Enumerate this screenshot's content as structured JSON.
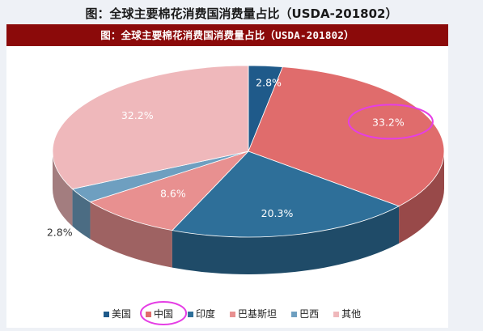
{
  "page": {
    "outer_title": "图：全球主要棉花消费国消费量占比（USDA-201802）",
    "inner_title": "图：全球主要棉花消费国消费量占比（USDA-201802）"
  },
  "chart_data": {
    "type": "pie",
    "style": "3d-pie",
    "title": "图：全球主要棉花消费国消费量占比（USDA-201802）",
    "legend_position": "bottom",
    "slices": [
      {
        "label": "美国",
        "value": 2.8,
        "display": "2.8%",
        "color": "#1f5a8a"
      },
      {
        "label": "中国",
        "value": 33.2,
        "display": "33.2%",
        "color": "#e06c6c"
      },
      {
        "label": "印度",
        "value": 20.3,
        "display": "20.3%",
        "color": "#2e6f99"
      },
      {
        "label": "巴基斯坦",
        "value": 8.6,
        "display": "8.6%",
        "color": "#e89090"
      },
      {
        "label": "巴西",
        "value": 2.8,
        "display": "2.8%",
        "color": "#6e9fc0"
      },
      {
        "label": "其他",
        "value": 32.2,
        "display": "32.2%",
        "color": "#efb8bb"
      }
    ],
    "highlighted": [
      "中国"
    ]
  },
  "annotations": {
    "highlight_color": "#e53ee5"
  }
}
